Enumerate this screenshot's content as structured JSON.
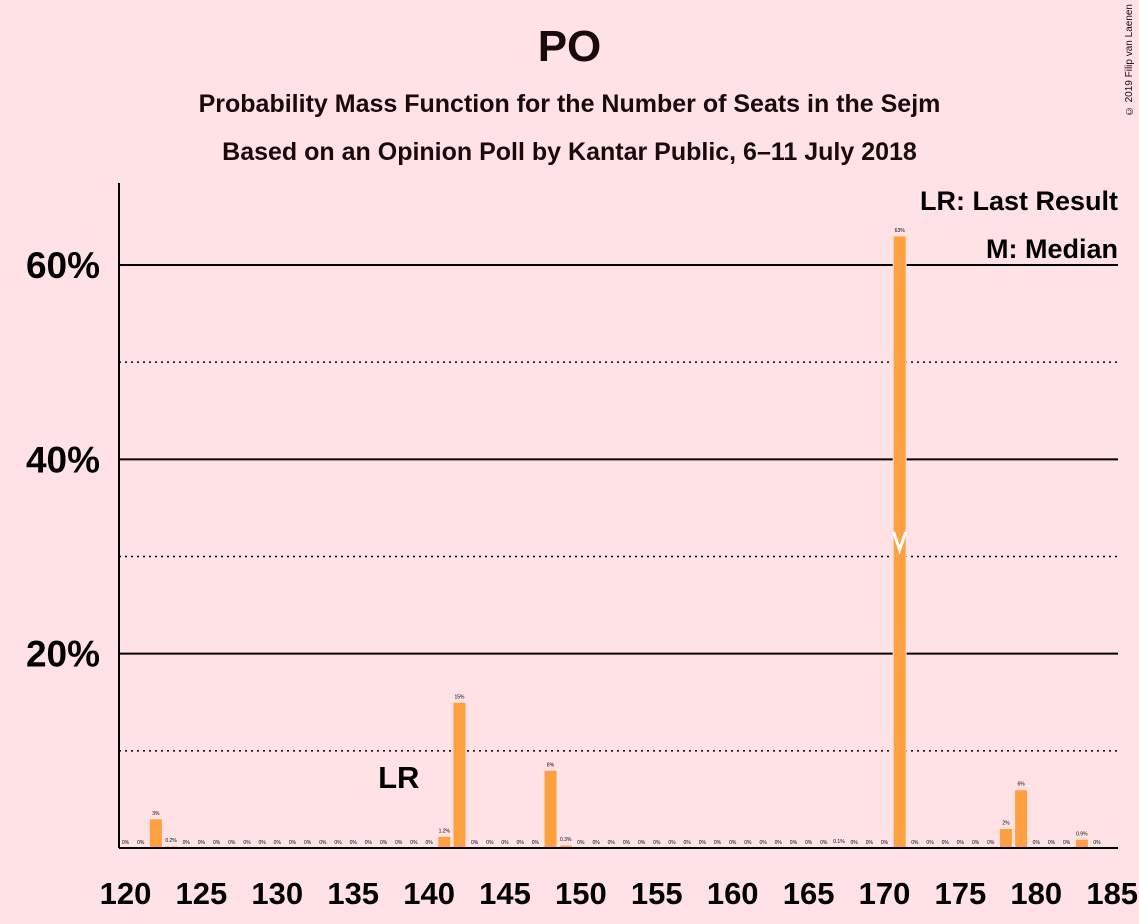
{
  "title": "PO",
  "subtitle1": "Probability Mass Function for the Number of Seats in the Sejm",
  "subtitle2": "Based on an Opinion Poll by Kantar Public, 6–11 July 2018",
  "copyright": "© 2019 Filip van Laenen",
  "legend": {
    "lr": "LR: Last Result",
    "m": "M: Median"
  },
  "lr_label": "LR",
  "median_mark": "M",
  "colors": {
    "bar": "#FFA040",
    "background": "#FFE2E6",
    "grid": "#000000",
    "median": "#FFFFFF"
  },
  "chart_data": {
    "type": "bar",
    "title": "PO",
    "xlabel": "",
    "ylabel": "",
    "ylim": [
      0,
      68
    ],
    "yticks": [
      {
        "value": 20,
        "label": "20%"
      },
      {
        "value": 40,
        "label": "40%"
      },
      {
        "value": 60,
        "label": "60%"
      }
    ],
    "xticks": [
      120,
      125,
      130,
      135,
      140,
      145,
      150,
      155,
      160,
      165,
      170,
      175,
      180,
      185
    ],
    "last_result": 138,
    "median": 171,
    "x": [
      120,
      121,
      122,
      123,
      124,
      125,
      126,
      127,
      128,
      129,
      130,
      131,
      132,
      133,
      134,
      135,
      136,
      137,
      138,
      139,
      140,
      141,
      142,
      143,
      144,
      145,
      146,
      147,
      148,
      149,
      150,
      151,
      152,
      153,
      154,
      155,
      156,
      157,
      158,
      159,
      160,
      161,
      162,
      163,
      164,
      165,
      166,
      167,
      168,
      169,
      170,
      171,
      172,
      173,
      174,
      175,
      176,
      177,
      178,
      179,
      180,
      181,
      182,
      183,
      184
    ],
    "values": [
      0,
      0,
      3,
      0.2,
      0,
      0,
      0,
      0,
      0,
      0,
      0,
      0,
      0,
      0,
      0,
      0,
      0,
      0,
      0,
      0,
      0,
      1.2,
      15,
      0,
      0,
      0,
      0,
      0,
      8,
      0.3,
      0,
      0,
      0,
      0,
      0,
      0,
      0,
      0,
      0,
      0,
      0,
      0,
      0,
      0,
      0,
      0,
      0,
      0.1,
      0,
      0,
      0,
      63,
      0,
      0,
      0,
      0,
      0,
      0,
      2,
      6,
      0,
      0,
      0,
      0.9,
      0
    ],
    "labels": [
      "0%",
      "0%",
      "3%",
      "0.2%",
      "0%",
      "0%",
      "0%",
      "0%",
      "0%",
      "0%",
      "0%",
      "0%",
      "0%",
      "0%",
      "0%",
      "0%",
      "0%",
      "0%",
      "0%",
      "0%",
      "0%",
      "1.2%",
      "15%",
      "0%",
      "0%",
      "0%",
      "0%",
      "0%",
      "8%",
      "0.3%",
      "0%",
      "0%",
      "0%",
      "0%",
      "0%",
      "0%",
      "0%",
      "0%",
      "0%",
      "0%",
      "0%",
      "0%",
      "0%",
      "0%",
      "0%",
      "0%",
      "0%",
      "0.1%",
      "0%",
      "0%",
      "0%",
      "63%",
      "0%",
      "0%",
      "0%",
      "0%",
      "0%",
      "0%",
      "2%",
      "6%",
      "0%",
      "0%",
      "0%",
      "0.9%",
      "0%"
    ]
  }
}
